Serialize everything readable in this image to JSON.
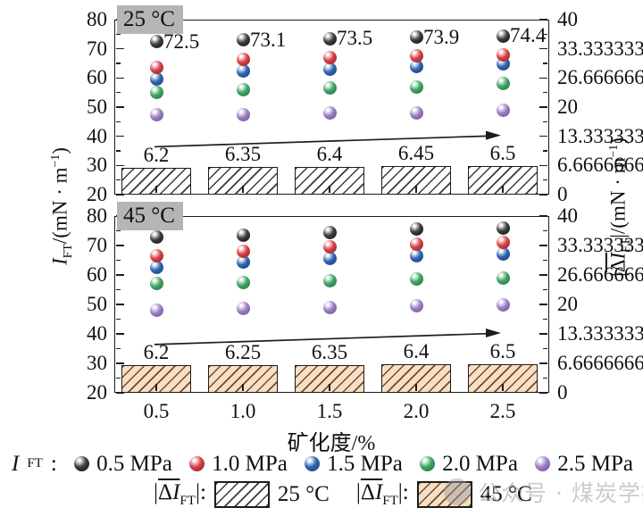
{
  "labels": {
    "x_axis_title": "矿化度/%",
    "left_axis_title": {
      "i": "I",
      "sub": "FT",
      "unit": "/(mN · m",
      "sup": "−1",
      "unit_end": ")"
    },
    "right_axis_title": {
      "pre": "|",
      "ovl_delta": "Δ",
      "ovl_i": "I",
      "sub": "FT",
      "post": "|",
      "unit": "/(mN · m",
      "sup": "−1",
      "unit_end": ")"
    }
  },
  "legend": {
    "ift_prefix": {
      "i": "I",
      "sub": "FT",
      "colon": ":"
    },
    "pressure_items": [
      {
        "label": "0.5 MPa",
        "color": "#3f3f3f",
        "dark": "#0a0a0a"
      },
      {
        "label": "1.0 MPa",
        "color": "#d8434a",
        "dark": "#8a181f"
      },
      {
        "label": "1.5 MPa",
        "color": "#3365b0",
        "dark": "#123a74"
      },
      {
        "label": "2.0 MPa",
        "color": "#41a565",
        "dark": "#1c6a3b"
      },
      {
        "label": "2.5 MPa",
        "color": "#9d80c5",
        "dark": "#66488e"
      }
    ],
    "delta_prefix": {
      "pre": "|",
      "ovl_delta": "Δ",
      "ovl_i": "I",
      "sub": "FT",
      "post": "|",
      "colon": ":"
    },
    "temp_items": [
      {
        "label": "25 °C",
        "fill": "#ffffff",
        "hatch": "#3a3a3a"
      },
      {
        "label": "45 °C",
        "fill": "#f8dfc3",
        "hatch": "#6d4a33"
      }
    ]
  },
  "watermark": {
    "text": "公众号 · 煤炭学报"
  },
  "chart_data": [
    {
      "type": "scatter+bar",
      "panel_title": "25 °C",
      "categories": [
        0.5,
        1.0,
        1.5,
        2.0,
        2.5
      ],
      "category_labels": [
        "0.5",
        "1.0",
        "1.5",
        "2.0",
        "2.5"
      ],
      "left_axis": {
        "title": "IFT/(mN·m−1)",
        "min": 20,
        "max": 80,
        "major": 10,
        "minor": 5
      },
      "right_axis": {
        "title": "|ΔIFT|/(mN·m−1)",
        "min": 0,
        "max": 40,
        "major": 10,
        "minor": 5
      },
      "series": [
        {
          "name": "0.5 MPa",
          "color": "#3f3f3f",
          "dark": "#0a0a0a",
          "values": [
            72.5,
            73.1,
            73.5,
            73.9,
            74.4
          ],
          "point_labels": [
            "72.5",
            "73.1",
            "73.5",
            "73.9",
            "74.4"
          ]
        },
        {
          "name": "1.0 MPa",
          "color": "#d8434a",
          "dark": "#8a181f",
          "values": [
            63.5,
            66.5,
            67.0,
            67.5,
            68.0
          ]
        },
        {
          "name": "1.5 MPa",
          "color": "#3365b0",
          "dark": "#123a74",
          "values": [
            59.5,
            62.5,
            63.0,
            64.0,
            65.0
          ]
        },
        {
          "name": "2.0 MPa",
          "color": "#41a565",
          "dark": "#1c6a3b",
          "values": [
            55.0,
            56.0,
            56.5,
            57.0,
            58.0
          ]
        },
        {
          "name": "2.5 MPa",
          "color": "#9d80c5",
          "dark": "#66488e",
          "values": [
            47.5,
            47.5,
            48.0,
            48.0,
            49.0
          ]
        }
      ],
      "bars": {
        "name": "25 °C",
        "axis": "right",
        "values": [
          6.2,
          6.35,
          6.4,
          6.45,
          6.5
        ],
        "labels": [
          "6.2",
          "6.35",
          "6.4",
          "6.45",
          "6.5"
        ],
        "fill": "#ffffff",
        "hatch": "#3a3a3a"
      },
      "trend_arrow": true,
      "show_x_labels": false
    },
    {
      "type": "scatter+bar",
      "panel_title": "45 °C",
      "categories": [
        0.5,
        1.0,
        1.5,
        2.0,
        2.5
      ],
      "category_labels": [
        "0.5",
        "1.0",
        "1.5",
        "2.0",
        "2.5"
      ],
      "left_axis": {
        "title": "IFT/(mN·m−1)",
        "min": 20,
        "max": 80,
        "major": 10,
        "minor": 5
      },
      "right_axis": {
        "title": "|ΔIFT|/(mN·m−1)",
        "min": 0,
        "max": 40,
        "major": 10,
        "minor": 5
      },
      "series": [
        {
          "name": "0.5 MPa",
          "color": "#3f3f3f",
          "dark": "#0a0a0a",
          "values": [
            73.0,
            73.5,
            74.5,
            75.5,
            76.0
          ]
        },
        {
          "name": "1.0 MPa",
          "color": "#d8434a",
          "dark": "#8a181f",
          "values": [
            66.5,
            68.0,
            69.5,
            70.5,
            71.0
          ]
        },
        {
          "name": "1.5 MPa",
          "color": "#3365b0",
          "dark": "#123a74",
          "values": [
            62.5,
            64.5,
            65.5,
            66.5,
            67.0
          ]
        },
        {
          "name": "2.0 MPa",
          "color": "#41a565",
          "dark": "#1c6a3b",
          "values": [
            57.0,
            57.5,
            58.0,
            58.5,
            59.0
          ]
        },
        {
          "name": "2.5 MPa",
          "color": "#9d80c5",
          "dark": "#66488e",
          "values": [
            48.0,
            48.5,
            49.0,
            49.5,
            50.0
          ]
        }
      ],
      "bars": {
        "name": "45 °C",
        "axis": "right",
        "values": [
          6.2,
          6.25,
          6.35,
          6.4,
          6.5
        ],
        "labels": [
          "6.2",
          "6.25",
          "6.35",
          "6.4",
          "6.5"
        ],
        "fill": "#f8dfc3",
        "hatch": "#6d4a33"
      },
      "trend_arrow": true,
      "show_x_labels": true
    }
  ]
}
